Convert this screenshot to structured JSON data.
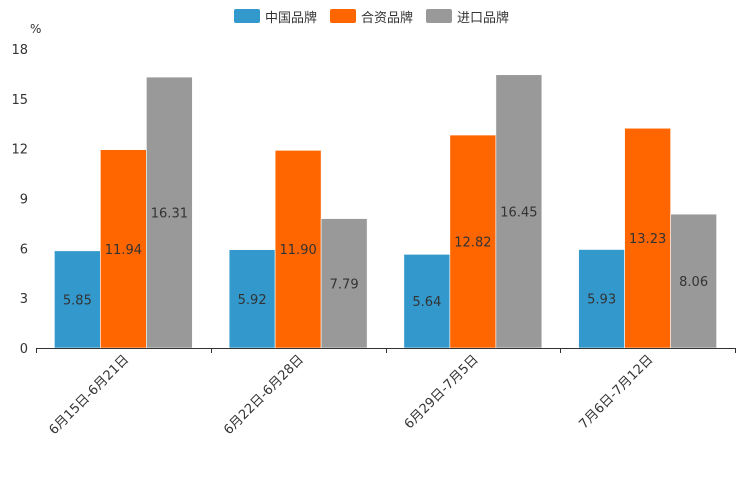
{
  "chart_data": {
    "type": "bar",
    "title": "",
    "ylabel": "%",
    "xlabel": "",
    "ylim": [
      0,
      18
    ],
    "yticks": [
      0,
      3,
      6,
      9,
      12,
      15,
      18
    ],
    "categories": [
      "6月15日-6月21日",
      "6月22日-6月28日",
      "6月29日-7月5日",
      "7月6日-7月12日"
    ],
    "series": [
      {
        "name": "中国品牌",
        "color": "#3399cc",
        "values": [
          5.85,
          5.92,
          5.64,
          5.93
        ]
      },
      {
        "name": "合资品牌",
        "color": "#ff6600",
        "values": [
          11.94,
          11.9,
          12.82,
          13.23
        ]
      },
      {
        "name": "进口品牌",
        "color": "#999999",
        "values": [
          16.31,
          7.79,
          16.45,
          8.06
        ]
      }
    ],
    "legend_position": "top-center",
    "data_labels": true,
    "grid": false
  }
}
